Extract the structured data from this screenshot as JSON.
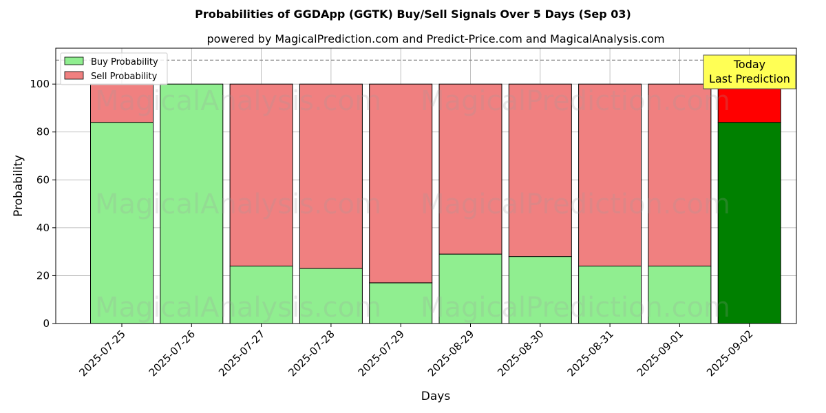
{
  "title": "Probabilities of GGDApp (GGTK) Buy/Sell Signals Over 5 Days (Sep 03)",
  "subtitle": "powered by MagicalPrediction.com and Predict-Price.com and MagicalAnalysis.com",
  "watermarks": [
    "MagicalAnalysis.com",
    "MagicalPrediction.com"
  ],
  "annotation": {
    "line1": "Today",
    "line2": "Last Prediction",
    "bg_color": "#ffff55"
  },
  "colors": {
    "buy": "#90ee90",
    "sell": "#f08080",
    "buy_highlight": "#008000",
    "sell_highlight": "#ff0000",
    "reference_line": "#808080",
    "grid": "#b0b0b0"
  },
  "chart_data": {
    "type": "bar",
    "stacked": true,
    "xlabel": "Days",
    "ylabel": "Probability",
    "ylim": [
      0,
      115
    ],
    "yticks": [
      0,
      20,
      40,
      60,
      80,
      100
    ],
    "reference_line": 110,
    "grid": true,
    "legend_position": "top-left",
    "categories": [
      "2025-07-25",
      "2025-07-26",
      "2025-07-27",
      "2025-07-28",
      "2025-07-29",
      "2025-08-29",
      "2025-08-30",
      "2025-08-31",
      "2025-09-01",
      "2025-09-02"
    ],
    "series": [
      {
        "name": "Buy Probability",
        "values": [
          84,
          100,
          24,
          23,
          17,
          29,
          28,
          24,
          24,
          84
        ]
      },
      {
        "name": "Sell Probability",
        "values": [
          16,
          0,
          76,
          77,
          83,
          71,
          72,
          76,
          76,
          16
        ]
      }
    ],
    "highlight_index": 9
  }
}
